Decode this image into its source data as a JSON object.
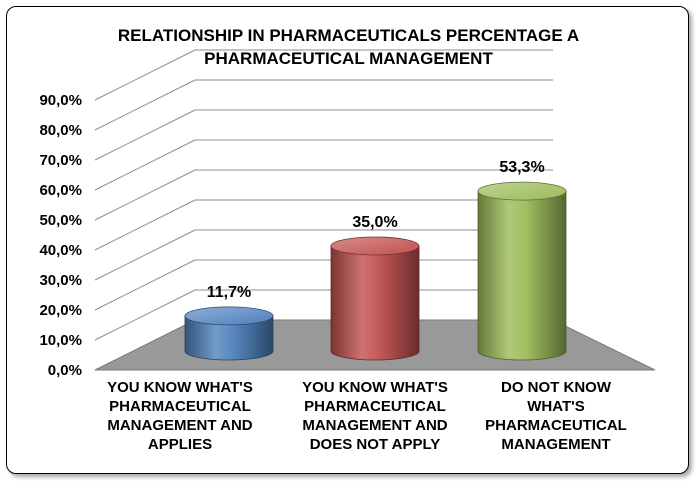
{
  "chart_data": {
    "type": "bar",
    "title": "RELATIONSHIP IN PHARMACEUTICALS PERCENTAGE A PHARMACEUTICAL MANAGEMENT",
    "categories": [
      "YOU KNOW WHAT'S PHARMACEUTICAL MANAGEMENT AND APPLIES",
      "YOU KNOW WHAT'S PHARMACEUTICAL MANAGEMENT AND DOES NOT APPLY",
      "DO NOT KNOW WHAT'S PHARMACEUTICAL MANAGEMENT"
    ],
    "category_lines": [
      [
        "YOU KNOW WHAT'S",
        "PHARMACEUTICAL",
        "MANAGEMENT AND",
        "APPLIES"
      ],
      [
        "YOU KNOW WHAT'S",
        "PHARMACEUTICAL",
        "MANAGEMENT AND",
        "DOES NOT APPLY"
      ],
      [
        "DO NOT KNOW",
        "WHAT'S",
        "PHARMACEUTICAL",
        "MANAGEMENT"
      ]
    ],
    "values": [
      11.7,
      35.0,
      53.3
    ],
    "data_labels": [
      "11,7%",
      "35,0%",
      "53,3%"
    ],
    "colors": [
      "#4f81bd",
      "#c0504d",
      "#9bbb59"
    ],
    "ylim": [
      0,
      90
    ],
    "yticks": [
      "0,0%",
      "10,0%",
      "20,0%",
      "30,0%",
      "40,0%",
      "50,0%",
      "60,0%",
      "70,0%",
      "80,0%",
      "90,0%"
    ],
    "grid": true,
    "style": "3d-cylinder"
  }
}
